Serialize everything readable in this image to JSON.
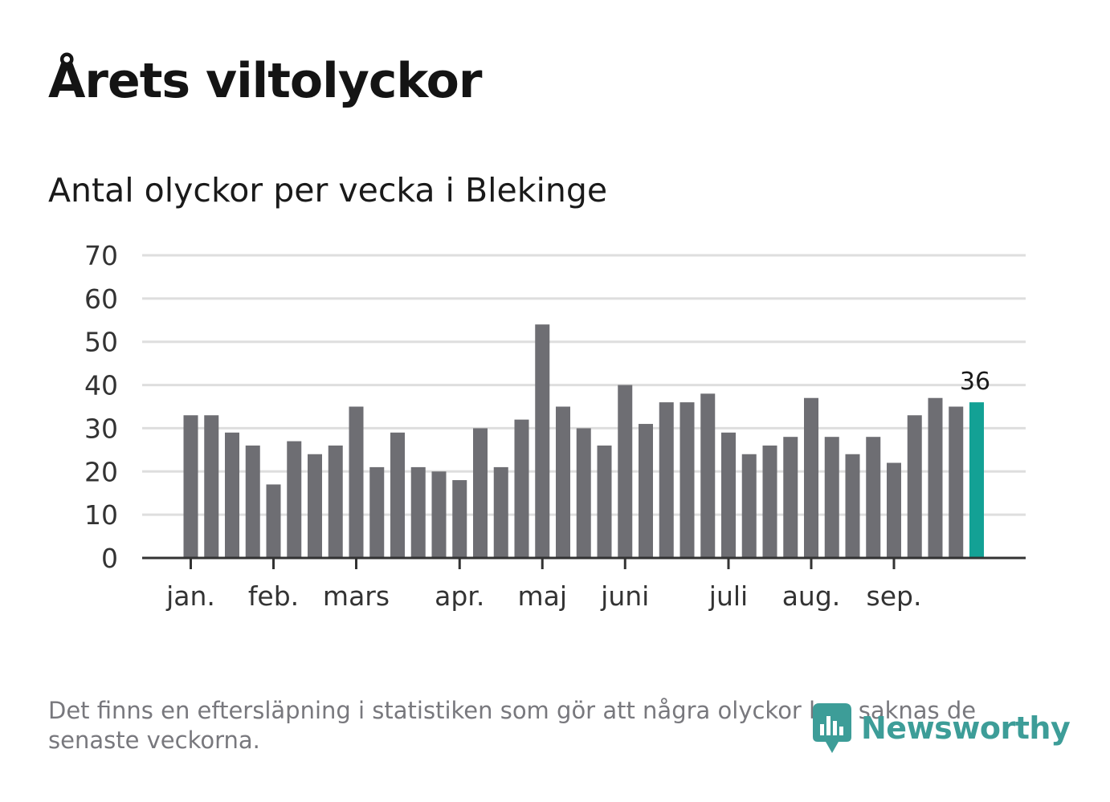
{
  "title": "Årets viltolyckor",
  "subtitle": "Antal olyckor per vecka i Blekinge",
  "note": "Det finns en eftersläpning i statistiken som gör att några olyckor kan saknas de senaste veckorna.",
  "brand": {
    "name": "Newsworthy",
    "logo_icon": "newsworthy-logo-icon"
  },
  "colors": {
    "bar": "#6e6e73",
    "highlight": "#13a195",
    "grid": "#dedede",
    "axis": "#333333",
    "brand": "#3d9d98"
  },
  "chart_data": {
    "type": "bar",
    "title": "Antal olyckor per vecka i Blekinge",
    "xlabel": "",
    "ylabel": "",
    "ylim": [
      0,
      70
    ],
    "yticks": [
      0,
      10,
      20,
      30,
      40,
      50,
      60,
      70
    ],
    "grid": true,
    "month_labels": [
      {
        "label": "jan.",
        "week_index": 0
      },
      {
        "label": "feb.",
        "week_index": 4
      },
      {
        "label": "mars",
        "week_index": 8
      },
      {
        "label": "apr.",
        "week_index": 13
      },
      {
        "label": "maj",
        "week_index": 17
      },
      {
        "label": "juni",
        "week_index": 21
      },
      {
        "label": "juli",
        "week_index": 26
      },
      {
        "label": "aug.",
        "week_index": 30
      },
      {
        "label": "sep.",
        "week_index": 34
      }
    ],
    "values": [
      33,
      33,
      29,
      26,
      17,
      27,
      24,
      26,
      35,
      21,
      29,
      21,
      20,
      18,
      30,
      21,
      32,
      54,
      35,
      30,
      26,
      40,
      31,
      36,
      36,
      38,
      29,
      24,
      26,
      28,
      37,
      28,
      24,
      28,
      22,
      33,
      37,
      35,
      36
    ],
    "highlight_last": true,
    "annotations": [
      {
        "text": "36",
        "week_index": 38
      }
    ]
  }
}
